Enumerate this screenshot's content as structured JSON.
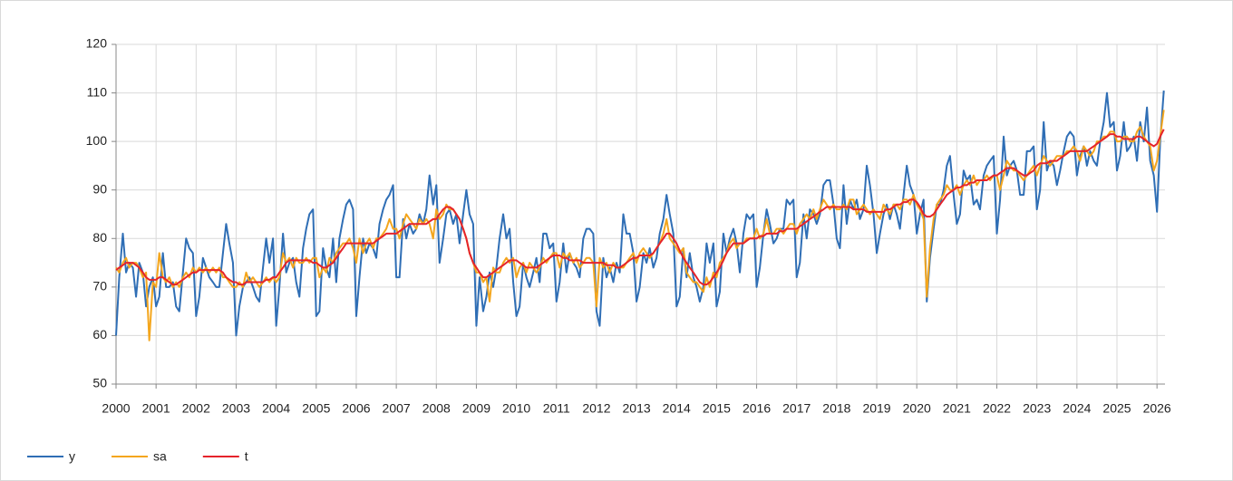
{
  "chart_data": {
    "type": "line",
    "x": [
      2000,
      2000.08,
      2000.17,
      2000.25,
      2000.33,
      2000.42,
      2000.5,
      2000.58,
      2000.67,
      2000.75,
      2000.83,
      2000.92,
      2001,
      2001.08,
      2001.17,
      2001.25,
      2001.33,
      2001.42,
      2001.5,
      2001.58,
      2001.67,
      2001.75,
      2001.83,
      2001.92,
      2002,
      2002.08,
      2002.17,
      2002.25,
      2002.33,
      2002.42,
      2002.5,
      2002.58,
      2002.67,
      2002.75,
      2002.83,
      2002.92,
      2003,
      2003.08,
      2003.17,
      2003.25,
      2003.33,
      2003.42,
      2003.5,
      2003.58,
      2003.67,
      2003.75,
      2003.83,
      2003.92,
      2004,
      2004.08,
      2004.17,
      2004.25,
      2004.33,
      2004.42,
      2004.5,
      2004.58,
      2004.67,
      2004.75,
      2004.83,
      2004.92,
      2005,
      2005.08,
      2005.17,
      2005.25,
      2005.33,
      2005.42,
      2005.5,
      2005.58,
      2005.67,
      2005.75,
      2005.83,
      2005.92,
      2006,
      2006.08,
      2006.17,
      2006.25,
      2006.33,
      2006.42,
      2006.5,
      2006.58,
      2006.67,
      2006.75,
      2006.83,
      2006.92,
      2007,
      2007.08,
      2007.17,
      2007.25,
      2007.33,
      2007.42,
      2007.5,
      2007.58,
      2007.67,
      2007.75,
      2007.83,
      2007.92,
      2008,
      2008.08,
      2008.17,
      2008.25,
      2008.33,
      2008.42,
      2008.5,
      2008.58,
      2008.67,
      2008.75,
      2008.83,
      2008.92,
      2009,
      2009.08,
      2009.17,
      2009.25,
      2009.33,
      2009.42,
      2009.5,
      2009.58,
      2009.67,
      2009.75,
      2009.83,
      2009.92,
      2010,
      2010.08,
      2010.17,
      2010.25,
      2010.33,
      2010.42,
      2010.5,
      2010.58,
      2010.67,
      2010.75,
      2010.83,
      2010.92,
      2011,
      2011.08,
      2011.17,
      2011.25,
      2011.33,
      2011.42,
      2011.5,
      2011.58,
      2011.67,
      2011.75,
      2011.83,
      2011.92,
      2012,
      2012.08,
      2012.17,
      2012.25,
      2012.33,
      2012.42,
      2012.5,
      2012.58,
      2012.67,
      2012.75,
      2012.83,
      2012.92,
      2013,
      2013.08,
      2013.17,
      2013.25,
      2013.33,
      2013.42,
      2013.5,
      2013.58,
      2013.67,
      2013.75,
      2013.83,
      2013.92,
      2014,
      2014.08,
      2014.17,
      2014.25,
      2014.33,
      2014.42,
      2014.5,
      2014.58,
      2014.67,
      2014.75,
      2014.83,
      2014.92,
      2015,
      2015.08,
      2015.17,
      2015.25,
      2015.33,
      2015.42,
      2015.5,
      2015.58,
      2015.67,
      2015.75,
      2015.83,
      2015.92,
      2016,
      2016.08,
      2016.17,
      2016.25,
      2016.33,
      2016.42,
      2016.5,
      2016.58,
      2016.67,
      2016.75,
      2016.83,
      2016.92,
      2017,
      2017.08,
      2017.17,
      2017.25,
      2017.33,
      2017.42,
      2017.5,
      2017.58,
      2017.67,
      2017.75,
      2017.83,
      2017.92,
      2018,
      2018.08,
      2018.17,
      2018.25,
      2018.33,
      2018.42,
      2018.5,
      2018.58,
      2018.67,
      2018.75,
      2018.83,
      2018.92,
      2019,
      2019.08,
      2019.17,
      2019.25,
      2019.33,
      2019.42,
      2019.5,
      2019.58,
      2019.67,
      2019.75,
      2019.83,
      2019.92,
      2020,
      2020.08,
      2020.17,
      2020.25,
      2020.33,
      2020.42,
      2020.5,
      2020.58,
      2020.67,
      2020.75,
      2020.83,
      2020.92,
      2021,
      2021.08,
      2021.17,
      2021.25,
      2021.33,
      2021.42,
      2021.5,
      2021.58,
      2021.67,
      2021.75,
      2021.83,
      2021.92,
      2022,
      2022.08,
      2022.17,
      2022.25,
      2022.33,
      2022.42,
      2022.5,
      2022.58,
      2022.67,
      2022.75,
      2022.83,
      2022.92,
      2023,
      2023.08,
      2023.17,
      2023.25,
      2023.33,
      2023.42,
      2023.5,
      2023.58,
      2023.67,
      2023.75,
      2023.83,
      2023.92,
      2024,
      2024.08,
      2024.17,
      2024.25,
      2024.33,
      2024.42,
      2024.5,
      2024.58,
      2024.67,
      2024.75,
      2024.83,
      2024.92,
      2025,
      2025.08,
      2025.17,
      2025.25,
      2025.33,
      2025.42,
      2025.5,
      2025.58,
      2025.67,
      2025.75,
      2025.83,
      2025.92,
      2026,
      2026.08,
      2026.17
    ],
    "series": [
      {
        "name": "y",
        "color": "#2f6eb5",
        "values": [
          60,
          72,
          81,
          73,
          75,
          74,
          68,
          75,
          73,
          66,
          70,
          72,
          66,
          68,
          77,
          70,
          70,
          71,
          66,
          65,
          73,
          80,
          78,
          77,
          64,
          68,
          76,
          74,
          72,
          71,
          70,
          70,
          77,
          83,
          79,
          75,
          60,
          66,
          70,
          71,
          72,
          70,
          68,
          67,
          74,
          80,
          75,
          80,
          62,
          70,
          81,
          73,
          75,
          76,
          71,
          68,
          78,
          82,
          85,
          86,
          64,
          65,
          78,
          74,
          72,
          80,
          71,
          80,
          84,
          87,
          88,
          86,
          64,
          72,
          80,
          77,
          79,
          78,
          76,
          83,
          86,
          88,
          89,
          91,
          72,
          72,
          84,
          80,
          83,
          81,
          82,
          85,
          83,
          86,
          93,
          87,
          91,
          75,
          80,
          85,
          86,
          83,
          85,
          79,
          85,
          90,
          85,
          83,
          62,
          72,
          65,
          68,
          73,
          70,
          74,
          80,
          85,
          80,
          82,
          71,
          64,
          66,
          75,
          72,
          70,
          73,
          76,
          71,
          81,
          81,
          78,
          79,
          67,
          71,
          79,
          73,
          77,
          75,
          74,
          72,
          80,
          82,
          82,
          81,
          65,
          62,
          76,
          72,
          74,
          71,
          75,
          73,
          85,
          81,
          81,
          77,
          67,
          70,
          77,
          75,
          78,
          74,
          76,
          81,
          84,
          89,
          85,
          81,
          66,
          68,
          78,
          72,
          77,
          72,
          70,
          67,
          70,
          79,
          75,
          79,
          66,
          69,
          81,
          77,
          80,
          82,
          79,
          73,
          81,
          85,
          84,
          85,
          70,
          74,
          81,
          86,
          83,
          79,
          80,
          82,
          82,
          88,
          87,
          88,
          72,
          75,
          85,
          80,
          86,
          85,
          83,
          85,
          91,
          92,
          92,
          87,
          80,
          78,
          91,
          83,
          88,
          86,
          88,
          84,
          86,
          95,
          91,
          85,
          77,
          81,
          85,
          87,
          84,
          87,
          85,
          82,
          89,
          95,
          91,
          89,
          81,
          85,
          88,
          67,
          76,
          82,
          87,
          87,
          90,
          95,
          97,
          89,
          83,
          85,
          94,
          92,
          93,
          87,
          88,
          86,
          93,
          95,
          96,
          97,
          81,
          88,
          101,
          93,
          95,
          96,
          94,
          89,
          89,
          98,
          98,
          99,
          86,
          90,
          104,
          94,
          96,
          95,
          91,
          94,
          98,
          101,
          102,
          101,
          93,
          97,
          99,
          95,
          98,
          96,
          95,
          100,
          104,
          110,
          103,
          104,
          94,
          97,
          104,
          98,
          99,
          101,
          96,
          104,
          100,
          107,
          96,
          93,
          85.5,
          100,
          110.5
        ]
      },
      {
        "name": "sa",
        "color": "#f4a61d",
        "values": [
          74,
          73,
          75,
          76,
          74,
          75,
          75,
          74,
          72,
          73,
          59,
          71,
          70,
          77,
          72,
          71,
          72,
          70,
          71,
          70,
          72,
          73,
          72,
          74,
          73,
          74,
          73,
          74,
          73,
          74,
          73,
          74,
          72,
          72,
          71,
          70,
          70,
          71,
          70,
          73,
          71,
          72,
          71,
          70,
          71,
          72,
          71,
          72,
          71,
          72,
          77,
          75,
          76,
          74,
          76,
          75,
          75,
          76,
          75,
          76,
          76,
          72,
          74,
          73,
          76,
          75,
          77,
          78,
          79,
          79,
          80,
          78,
          75,
          80,
          77,
          79,
          80,
          78,
          80,
          80,
          81,
          82,
          84,
          82,
          82,
          80,
          83,
          85,
          84,
          83,
          82,
          84,
          83,
          84,
          83,
          80,
          86,
          84,
          85,
          87,
          86,
          86,
          85,
          84,
          82,
          80,
          77,
          75,
          73,
          73,
          71,
          72,
          67,
          74,
          73,
          73,
          75,
          76,
          75,
          76,
          72,
          74,
          75,
          73,
          75,
          74,
          73,
          74,
          76,
          75,
          76,
          77,
          77,
          74,
          77,
          76,
          77,
          75,
          76,
          74,
          75,
          76,
          76,
          75,
          66,
          76,
          74,
          75,
          73,
          75,
          74,
          74,
          74,
          75,
          76,
          77,
          75,
          77,
          78,
          77,
          76,
          77,
          78,
          79,
          81,
          84,
          80,
          79,
          78,
          77,
          78,
          73,
          72,
          71,
          71,
          70,
          69,
          72,
          70,
          73,
          72,
          75,
          76,
          77,
          79,
          80,
          78,
          79,
          79,
          80,
          80,
          80,
          82,
          80,
          81,
          84,
          81,
          81,
          82,
          82,
          81,
          82,
          83,
          83,
          81,
          83,
          84,
          85,
          84,
          86,
          84,
          86,
          88,
          87,
          86,
          87,
          86,
          86,
          87,
          86,
          88,
          88,
          85,
          86,
          87,
          86,
          85,
          86,
          85,
          84,
          87,
          86,
          85,
          87,
          87,
          86,
          88,
          88,
          87,
          89,
          87,
          86,
          84,
          68,
          78,
          84,
          87,
          88,
          89,
          91,
          90,
          90,
          91,
          89,
          91,
          92,
          91,
          93,
          91,
          92,
          92,
          93,
          92,
          93,
          93,
          90,
          93,
          96,
          95,
          94,
          94,
          93,
          92,
          93,
          94,
          95,
          93,
          95,
          97,
          96,
          95,
          96,
          97,
          97,
          97,
          98,
          98,
          99,
          98,
          96,
          99,
          98,
          97,
          98,
          100,
          100,
          101,
          101,
          102,
          102,
          100,
          100,
          101,
          101,
          100,
          100,
          102,
          103,
          101,
          100,
          99,
          94,
          96,
          101,
          106.5
        ]
      },
      {
        "name": "t",
        "color": "#e5232b",
        "values": [
          73.5,
          74,
          74.5,
          75,
          75,
          75,
          74.5,
          74,
          73,
          72,
          71.5,
          71.5,
          71.5,
          72,
          72,
          71.5,
          71,
          70.5,
          70.5,
          71,
          71.5,
          72,
          72.5,
          73,
          73,
          73.5,
          73.5,
          73.5,
          73.5,
          73.5,
          73.5,
          73.5,
          73,
          72,
          71.5,
          71,
          71,
          70.5,
          70.5,
          71,
          71,
          71,
          71,
          71,
          71,
          71.5,
          71.5,
          72,
          72,
          73,
          74,
          75,
          75.5,
          75.5,
          75.5,
          75.5,
          75.5,
          75.5,
          75.5,
          75,
          75,
          74.5,
          74,
          74,
          74.5,
          75,
          76,
          77,
          78,
          79,
          79,
          79,
          79,
          79,
          79,
          79,
          79,
          79,
          79.5,
          80,
          80.5,
          81,
          81,
          81,
          81,
          81.5,
          82,
          82.5,
          83,
          83,
          83,
          83,
          83,
          83,
          83.5,
          84,
          84,
          85,
          86,
          86.5,
          86.5,
          86,
          85,
          84,
          82,
          80,
          77,
          75,
          74,
          73,
          72,
          72,
          72.5,
          73,
          73.5,
          74,
          74.5,
          75,
          75.5,
          75.5,
          75.5,
          75,
          74.5,
          74,
          74,
          74,
          74,
          74.5,
          75,
          75.5,
          76,
          76.5,
          76.5,
          76.5,
          76,
          76,
          75.5,
          75.5,
          75.5,
          75.5,
          75,
          75,
          75,
          75,
          75,
          75,
          75,
          74.5,
          74.5,
          74.5,
          74,
          74,
          74.5,
          75,
          75.5,
          76,
          76,
          76.5,
          76.5,
          76.5,
          76.5,
          77,
          78,
          79,
          80,
          81,
          81,
          80,
          79,
          77.5,
          76,
          75,
          74,
          73,
          72,
          71,
          70.5,
          70.5,
          71,
          72,
          73,
          74,
          75.5,
          77,
          78,
          79,
          79,
          79,
          79,
          79.5,
          80,
          80,
          80,
          80.5,
          80.5,
          81,
          81,
          81,
          81,
          81.5,
          81.5,
          82,
          82,
          82,
          82,
          82.5,
          83,
          83.5,
          84,
          84.5,
          85,
          85.5,
          86,
          86.5,
          86.5,
          86.5,
          86.5,
          86.5,
          86.5,
          86.5,
          86.5,
          86,
          86,
          86,
          86,
          85.5,
          85.5,
          85.5,
          85.5,
          85.5,
          85.5,
          86,
          86,
          86.5,
          87,
          87,
          87.5,
          87.5,
          88,
          88,
          87.5,
          86.5,
          85,
          84.5,
          84.5,
          85,
          86,
          87,
          88,
          89,
          89.5,
          90,
          90.5,
          90.5,
          91,
          91,
          91.5,
          91.5,
          92,
          92,
          92,
          92,
          92.5,
          93,
          93,
          93.5,
          94,
          94.5,
          94.5,
          94.5,
          94,
          93.5,
          93,
          93,
          93.5,
          94,
          95,
          95.5,
          95.5,
          95.5,
          96,
          96,
          96,
          96.5,
          97,
          97.5,
          98,
          98,
          98,
          98,
          98,
          98,
          98.5,
          99,
          99.5,
          100,
          100.5,
          101,
          101.5,
          101.5,
          101,
          101,
          100.5,
          100.5,
          100.5,
          100.5,
          101,
          101,
          100.5,
          100,
          99.5,
          99,
          99.5,
          101,
          102.5
        ]
      }
    ],
    "xlim": [
      2000,
      2026.2
    ],
    "xticks": [
      2000,
      2001,
      2002,
      2003,
      2004,
      2005,
      2006,
      2007,
      2008,
      2009,
      2010,
      2011,
      2012,
      2013,
      2014,
      2015,
      2016,
      2017,
      2018,
      2019,
      2020,
      2021,
      2022,
      2023,
      2024,
      2025,
      2026
    ],
    "ylim": [
      50,
      120
    ],
    "yticks": [
      50,
      60,
      70,
      80,
      90,
      100,
      110,
      120
    ],
    "grid": true,
    "legend": "bottom-left"
  }
}
